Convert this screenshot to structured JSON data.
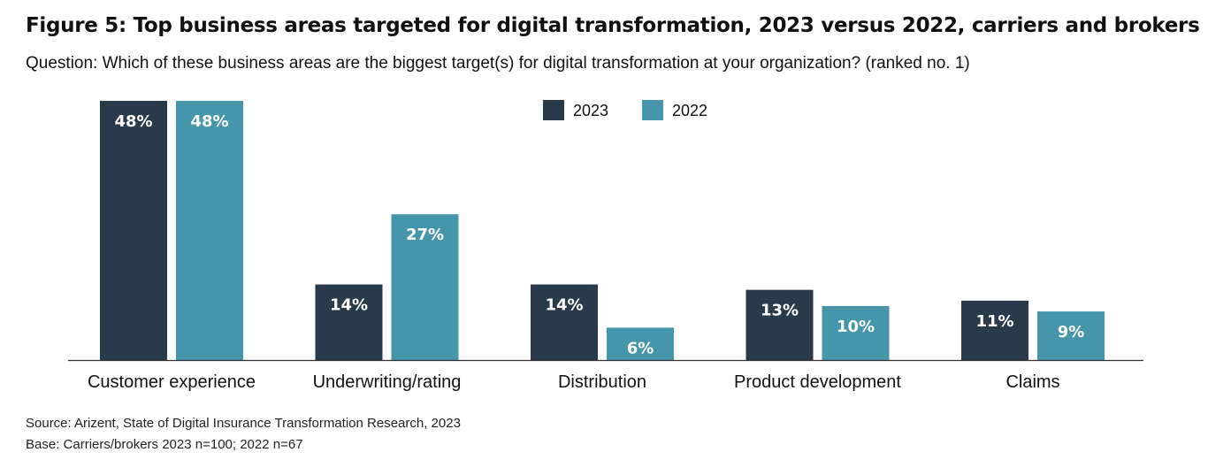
{
  "title": "Figure 5: Top business areas targeted for digital transformation, 2023 versus 2022, carriers and brokers",
  "subtitle": "Question: Which of these business areas are the biggest target(s) for digital transformation at your organization? (ranked no. 1)",
  "source": "Source: Arizent, State of Digital Insurance Transformation Research, 2023",
  "base": "Base: Carriers/brokers 2023 n=100; 2022 n=67",
  "colors": {
    "s2023": "#293a4a",
    "s2022": "#4596ab"
  },
  "chart_data": {
    "type": "bar",
    "categories": [
      "Customer experience",
      "Underwriting/rating",
      "Distribution",
      "Product development",
      "Claims"
    ],
    "series": [
      {
        "name": "2023",
        "values": [
          48,
          14,
          14,
          13,
          11
        ],
        "labels": [
          "48%",
          "14%",
          "14%",
          "13%",
          "11%"
        ]
      },
      {
        "name": "2022",
        "values": [
          48,
          27,
          6,
          10,
          9
        ],
        "labels": [
          "48%",
          "27%",
          "6%",
          "10%",
          "9%"
        ]
      }
    ],
    "ylim": [
      0,
      48
    ],
    "legend": "top-center",
    "grid": false
  }
}
